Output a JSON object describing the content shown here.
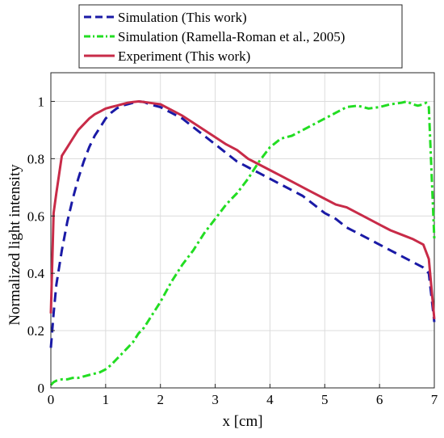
{
  "chart_data": {
    "type": "line",
    "xlabel": "x [cm]",
    "ylabel": "Normalized light intensity",
    "xlim": [
      0,
      7
    ],
    "ylim": [
      0,
      1.1
    ],
    "xticks": [
      "0",
      "1",
      "2",
      "3",
      "4",
      "5",
      "6",
      "7"
    ],
    "yticks": [
      "0",
      "0.2",
      "0.4",
      "0.6",
      "0.8",
      "1"
    ],
    "grid": true,
    "legend_position": "top",
    "series": [
      {
        "name": "Simulation (This work)",
        "color": "#1a1aa6",
        "style": "dashed",
        "x": [
          0,
          0.05,
          0.1,
          0.2,
          0.3,
          0.4,
          0.5,
          0.6,
          0.7,
          0.8,
          0.9,
          1.0,
          1.1,
          1.2,
          1.3,
          1.4,
          1.5,
          1.6,
          1.7,
          1.8,
          2.0,
          2.2,
          2.4,
          2.6,
          2.8,
          3.0,
          3.2,
          3.4,
          3.6,
          3.8,
          4.0,
          4.2,
          4.4,
          4.6,
          4.8,
          5.0,
          5.2,
          5.4,
          5.6,
          5.8,
          6.0,
          6.2,
          6.4,
          6.6,
          6.8,
          6.9,
          7.0
        ],
        "y": [
          0.14,
          0.26,
          0.36,
          0.48,
          0.58,
          0.66,
          0.73,
          0.79,
          0.84,
          0.88,
          0.91,
          0.94,
          0.96,
          0.975,
          0.985,
          0.99,
          0.995,
          1.0,
          0.998,
          0.99,
          0.98,
          0.96,
          0.94,
          0.91,
          0.88,
          0.85,
          0.82,
          0.79,
          0.77,
          0.75,
          0.73,
          0.71,
          0.69,
          0.67,
          0.64,
          0.61,
          0.59,
          0.56,
          0.54,
          0.52,
          0.5,
          0.48,
          0.46,
          0.44,
          0.42,
          0.4,
          0.23
        ]
      },
      {
        "name": "Simulation (Ramella-Roman et al., 2005)",
        "color": "#22dd22",
        "style": "dashdot",
        "x": [
          0,
          0.05,
          0.1,
          0.2,
          0.3,
          0.4,
          0.5,
          0.6,
          0.7,
          0.8,
          0.9,
          1.0,
          1.1,
          1.2,
          1.3,
          1.4,
          1.5,
          1.6,
          1.7,
          1.8,
          1.9,
          2.0,
          2.2,
          2.4,
          2.6,
          2.8,
          3.0,
          3.2,
          3.4,
          3.6,
          3.8,
          4.0,
          4.2,
          4.4,
          4.6,
          4.8,
          5.0,
          5.2,
          5.4,
          5.6,
          5.7,
          5.8,
          6.0,
          6.2,
          6.4,
          6.5,
          6.6,
          6.7,
          6.8,
          6.85,
          6.9,
          7.0
        ],
        "y": [
          0.01,
          0.02,
          0.025,
          0.03,
          0.03,
          0.035,
          0.035,
          0.04,
          0.045,
          0.05,
          0.055,
          0.065,
          0.08,
          0.1,
          0.12,
          0.14,
          0.16,
          0.19,
          0.21,
          0.24,
          0.27,
          0.3,
          0.37,
          0.43,
          0.48,
          0.54,
          0.59,
          0.64,
          0.68,
          0.73,
          0.79,
          0.84,
          0.87,
          0.88,
          0.9,
          0.92,
          0.94,
          0.96,
          0.98,
          0.985,
          0.98,
          0.975,
          0.98,
          0.99,
          0.995,
          1.0,
          0.99,
          0.985,
          0.99,
          0.995,
          0.98,
          0.52
        ]
      },
      {
        "name": "Experiment (This work)",
        "color": "#c82b48",
        "style": "solid",
        "x": [
          0,
          0.05,
          0.1,
          0.2,
          0.3,
          0.4,
          0.5,
          0.6,
          0.7,
          0.8,
          0.9,
          1.0,
          1.1,
          1.2,
          1.3,
          1.4,
          1.5,
          1.6,
          1.7,
          1.8,
          2.0,
          2.2,
          2.4,
          2.6,
          2.8,
          3.0,
          3.2,
          3.4,
          3.6,
          3.8,
          4.0,
          4.2,
          4.4,
          4.6,
          4.8,
          5.0,
          5.2,
          5.4,
          5.6,
          5.8,
          6.0,
          6.2,
          6.4,
          6.6,
          6.8,
          6.9,
          7.0
        ],
        "y": [
          0.26,
          0.61,
          0.68,
          0.81,
          0.84,
          0.87,
          0.9,
          0.92,
          0.94,
          0.955,
          0.965,
          0.975,
          0.98,
          0.985,
          0.99,
          0.995,
          0.998,
          1.0,
          0.998,
          0.995,
          0.99,
          0.97,
          0.95,
          0.925,
          0.9,
          0.875,
          0.85,
          0.83,
          0.8,
          0.78,
          0.76,
          0.74,
          0.72,
          0.7,
          0.68,
          0.66,
          0.64,
          0.63,
          0.61,
          0.59,
          0.57,
          0.55,
          0.535,
          0.52,
          0.5,
          0.45,
          0.24
        ]
      }
    ]
  }
}
